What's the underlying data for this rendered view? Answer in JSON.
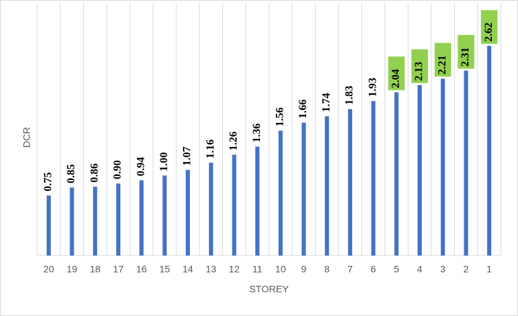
{
  "chart_data": {
    "type": "bar",
    "x_label": "STOREY",
    "y_label": "DCR",
    "categories": [
      "20",
      "19",
      "18",
      "17",
      "16",
      "15",
      "14",
      "13",
      "12",
      "11",
      "10",
      "9",
      "8",
      "7",
      "6",
      "5",
      "4",
      "3",
      "2",
      "1"
    ],
    "values": [
      0.75,
      0.85,
      0.86,
      0.9,
      0.94,
      1.0,
      1.07,
      1.16,
      1.26,
      1.36,
      1.56,
      1.66,
      1.74,
      1.83,
      1.93,
      2.04,
      2.13,
      2.21,
      2.31,
      2.62
    ],
    "value_labels": [
      "0.75",
      "0.85",
      "0.86",
      "0.90",
      "0.94",
      "1.00",
      "1.07",
      "1.16",
      "1.26",
      "1.36",
      "1.56",
      "1.66",
      "1.74",
      "1.83",
      "1.93",
      "2.04",
      "2.13",
      "2.21",
      "2.31",
      "2.62"
    ],
    "color": "#4472c4",
    "highlighted_categories": [
      "5",
      "4",
      "3",
      "2",
      "1"
    ],
    "highlight_color": "#92d050",
    "ylim": [
      0,
      3.15
    ],
    "vertical_grid": true
  }
}
